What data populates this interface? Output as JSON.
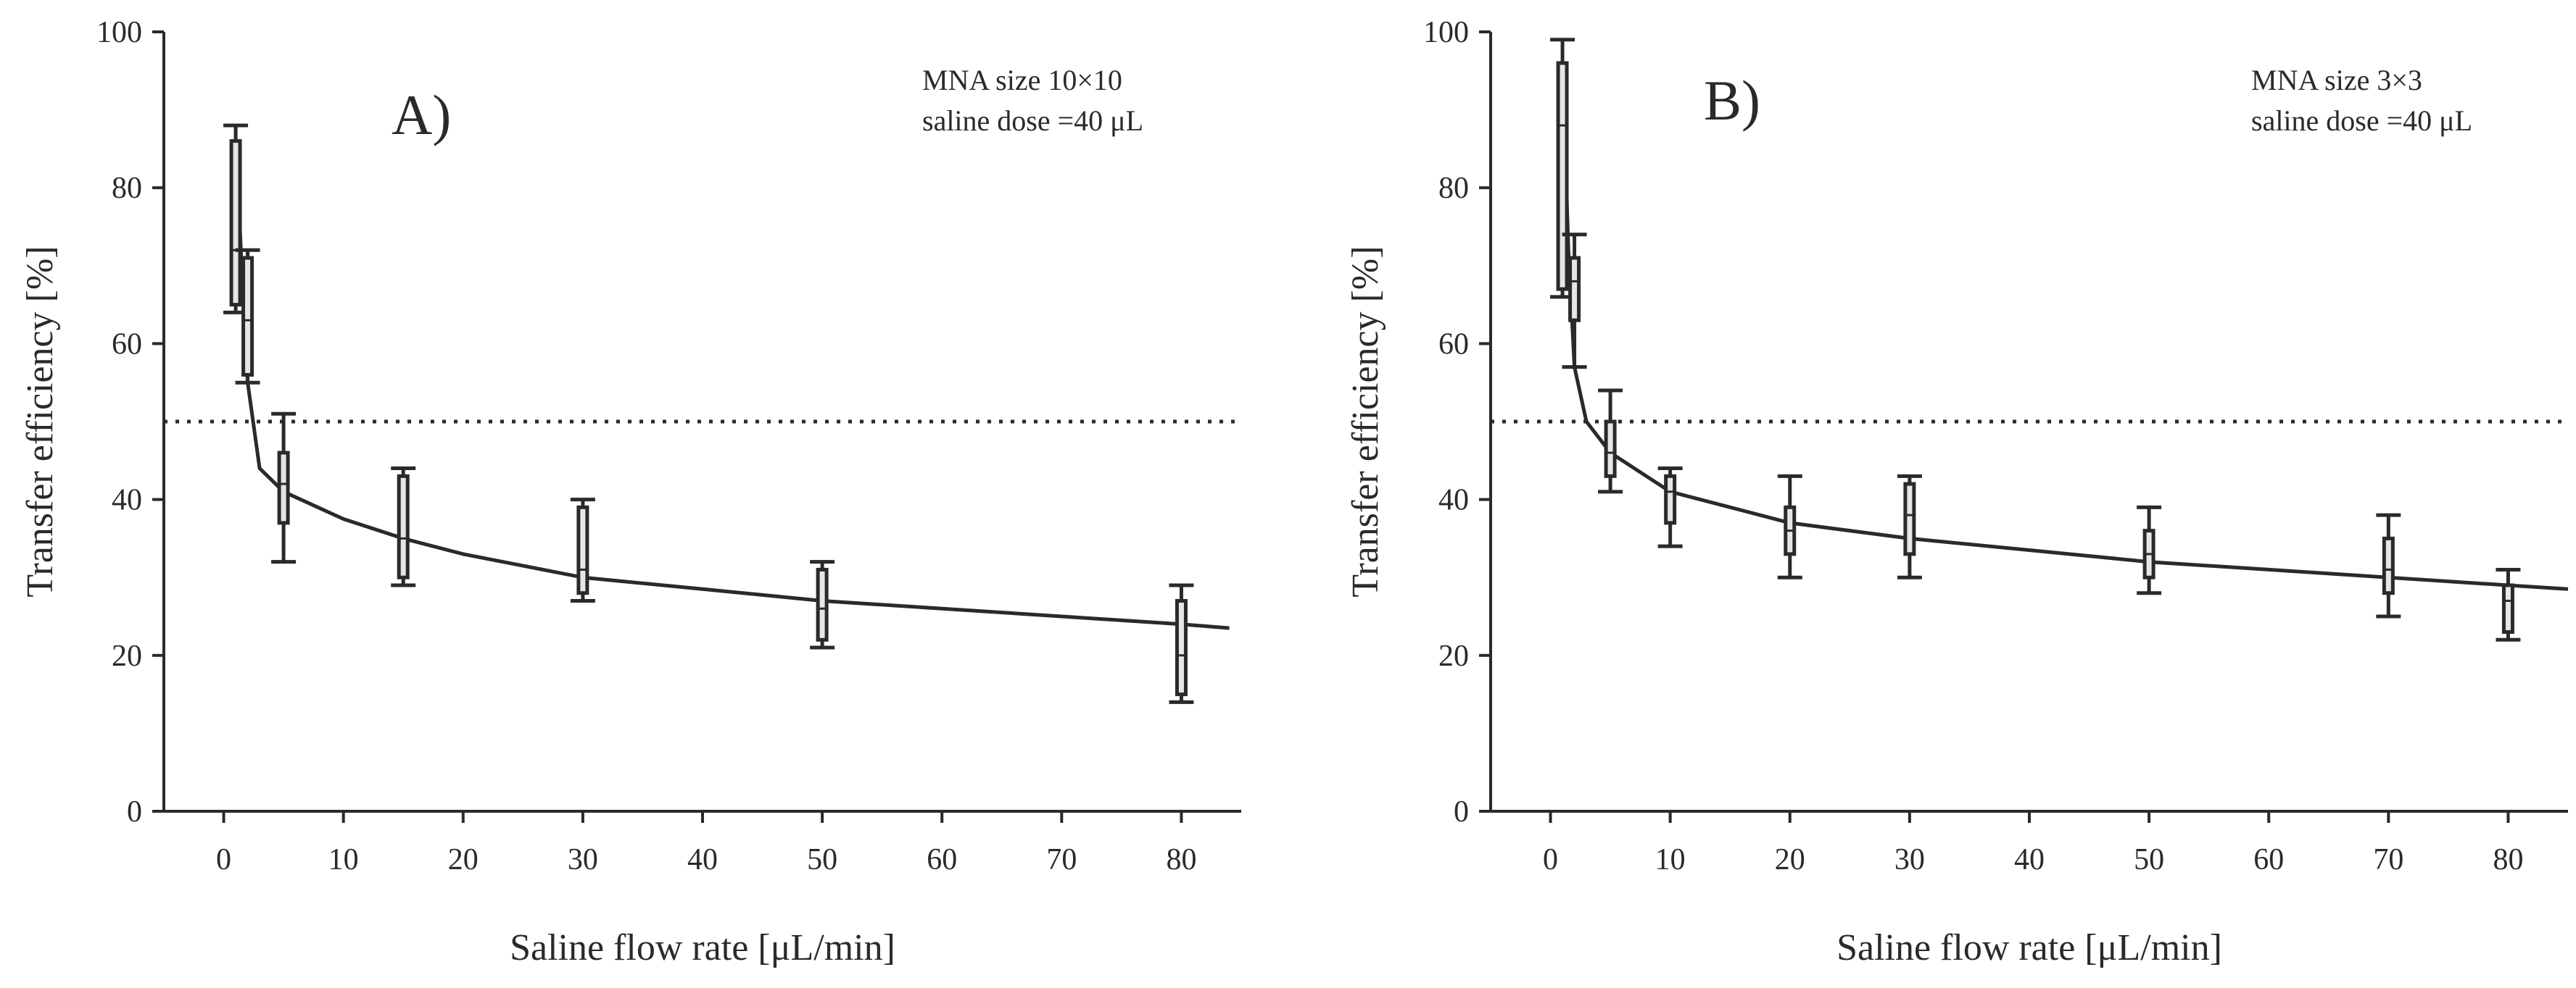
{
  "chart_data": [
    {
      "type": "box",
      "panel_label": "A)",
      "annotation": [
        "MNA size 10×10",
        "saline dose =40 μL"
      ],
      "xlabel": "Saline flow rate [μL/min]",
      "ylabel": "Transfer efficiency [%]",
      "xlim": [
        -5,
        85
      ],
      "ylim": [
        0,
        100
      ],
      "xticks": [
        0,
        10,
        20,
        30,
        40,
        50,
        60,
        70,
        80
      ],
      "yticks": [
        0,
        20,
        40,
        60,
        80,
        100
      ],
      "reference_line": 50,
      "boxes": [
        {
          "x": 1,
          "whisker_low": 64,
          "q1": 65,
          "median": 72,
          "q3": 86,
          "whisker_high": 88
        },
        {
          "x": 2,
          "whisker_low": 55,
          "q1": 56,
          "median": 63,
          "q3": 71,
          "whisker_high": 72
        },
        {
          "x": 5,
          "whisker_low": 32,
          "q1": 37,
          "median": 42,
          "q3": 46,
          "whisker_high": 51
        },
        {
          "x": 15,
          "whisker_low": 29,
          "q1": 30,
          "median": 35,
          "q3": 43,
          "whisker_high": 44
        },
        {
          "x": 30,
          "whisker_low": 27,
          "q1": 28,
          "median": 31,
          "q3": 39,
          "whisker_high": 40
        },
        {
          "x": 50,
          "whisker_low": 21,
          "q1": 22,
          "median": 26,
          "q3": 31,
          "whisker_high": 32
        },
        {
          "x": 80,
          "whisker_low": 14,
          "q1": 15,
          "median": 20,
          "q3": 27,
          "whisker_high": 29
        }
      ],
      "fit_curve": {
        "x": [
          1,
          1.5,
          2,
          3,
          5,
          10,
          15,
          20,
          30,
          40,
          50,
          60,
          70,
          80,
          84
        ],
        "y": [
          86,
          70,
          55,
          44,
          41,
          37.5,
          35,
          33,
          30,
          28.5,
          27,
          26,
          25,
          24,
          23.5
        ]
      }
    },
    {
      "type": "box",
      "panel_label": "B)",
      "annotation": [
        "MNA size 3×3",
        "saline dose =40 μL"
      ],
      "xlabel": "Saline flow rate [μL/min]",
      "ylabel": "Transfer efficiency [%]",
      "xlim": [
        -5,
        85
      ],
      "ylim": [
        0,
        100
      ],
      "xticks": [
        0,
        10,
        20,
        30,
        40,
        50,
        60,
        70,
        80
      ],
      "yticks": [
        0,
        20,
        40,
        60,
        80,
        100
      ],
      "reference_line": 50,
      "boxes": [
        {
          "x": 1,
          "whisker_low": 66,
          "q1": 67,
          "median": 88,
          "q3": 96,
          "whisker_high": 99
        },
        {
          "x": 2,
          "whisker_low": 57,
          "q1": 63,
          "median": 68,
          "q3": 71,
          "whisker_high": 74
        },
        {
          "x": 5,
          "whisker_low": 41,
          "q1": 43,
          "median": 46,
          "q3": 50,
          "whisker_high": 54
        },
        {
          "x": 10,
          "whisker_low": 34,
          "q1": 37,
          "median": 41,
          "q3": 43,
          "whisker_high": 44
        },
        {
          "x": 20,
          "whisker_low": 30,
          "q1": 33,
          "median": 36,
          "q3": 39,
          "whisker_high": 43
        },
        {
          "x": 30,
          "whisker_low": 30,
          "q1": 33,
          "median": 38,
          "q3": 42,
          "whisker_high": 43
        },
        {
          "x": 50,
          "whisker_low": 28,
          "q1": 30,
          "median": 33,
          "q3": 36,
          "whisker_high": 39
        },
        {
          "x": 70,
          "whisker_low": 25,
          "q1": 28,
          "median": 31,
          "q3": 35,
          "whisker_high": 38
        },
        {
          "x": 80,
          "whisker_low": 22,
          "q1": 23,
          "median": 27,
          "q3": 29,
          "whisker_high": 31
        }
      ],
      "fit_curve": {
        "x": [
          1,
          1.5,
          2,
          3,
          5,
          10,
          20,
          30,
          40,
          50,
          60,
          70,
          80,
          85
        ],
        "y": [
          95,
          72,
          57,
          50,
          46,
          41,
          37,
          35,
          33.5,
          32,
          31,
          30,
          29,
          28.5
        ]
      }
    }
  ]
}
